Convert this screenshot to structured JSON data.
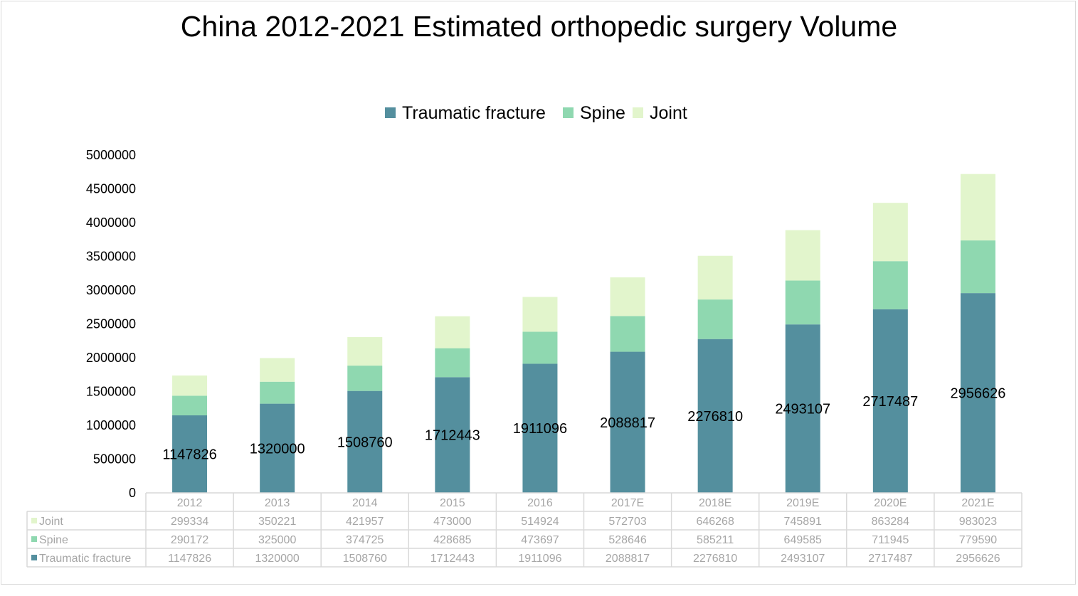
{
  "chart_data": {
    "type": "bar",
    "stacked": true,
    "title": "China 2012-2021 Estimated orthopedic surgery Volume",
    "categories": [
      "2012",
      "2013",
      "2014",
      "2015",
      "2016",
      "2017E",
      "2018E",
      "2019E",
      "2020E",
      "2021E"
    ],
    "series": [
      {
        "name": "Traumatic fracture",
        "color": "#548f9e",
        "values": [
          1147826,
          1320000,
          1508760,
          1712443,
          1911096,
          2088817,
          2276810,
          2493107,
          2717487,
          2956626
        ]
      },
      {
        "name": "Spine",
        "color": "#8fd8b0",
        "values": [
          290172,
          325000,
          374725,
          428685,
          473697,
          528646,
          585211,
          649585,
          711945,
          779590
        ]
      },
      {
        "name": "Joint",
        "color": "#e2f5cc",
        "values": [
          299334,
          350221,
          421957,
          473000,
          514924,
          572703,
          646268,
          745891,
          863284,
          983023
        ]
      }
    ],
    "data_labels_series": "Traumatic fracture",
    "ylim": [
      0,
      5000000
    ],
    "yticks": [
      0,
      500000,
      1000000,
      1500000,
      2000000,
      2500000,
      3000000,
      3500000,
      4000000,
      4500000,
      5000000
    ],
    "legend": "top",
    "data_table": true,
    "table_row_order": [
      "Joint",
      "Spine",
      "Traumatic fracture"
    ]
  }
}
